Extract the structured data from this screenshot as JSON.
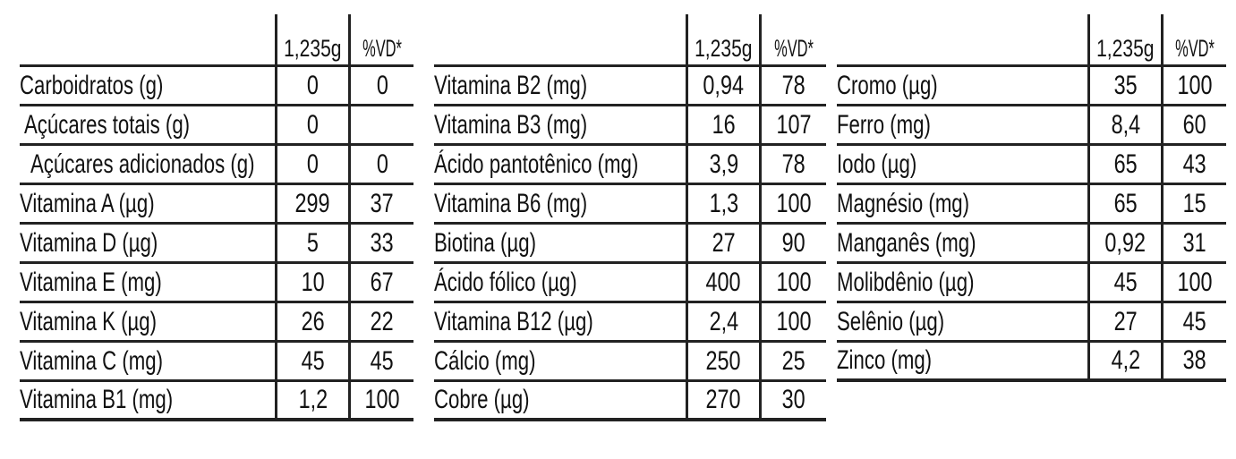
{
  "header": {
    "amount_label": "1,235g",
    "dv_label": "%VD*"
  },
  "tables": [
    {
      "rows": [
        {
          "name": "Carboidratos (g)",
          "amount": "0",
          "dv": "0",
          "indent": 0
        },
        {
          "name": "Açúcares totais (g)",
          "amount": "0",
          "dv": "",
          "indent": 1
        },
        {
          "name": "Açúcares adicionados (g)",
          "amount": "0",
          "dv": "0",
          "indent": 2
        },
        {
          "name": "Vitamina A (µg)",
          "amount": "299",
          "dv": "37",
          "indent": 0
        },
        {
          "name": "Vitamina D (µg)",
          "amount": "5",
          "dv": "33",
          "indent": 0
        },
        {
          "name": "Vitamina E (mg)",
          "amount": "10",
          "dv": "67",
          "indent": 0
        },
        {
          "name": "Vitamina K (µg)",
          "amount": "26",
          "dv": "22",
          "indent": 0
        },
        {
          "name": "Vitamina C (mg)",
          "amount": "45",
          "dv": "45",
          "indent": 0
        },
        {
          "name": "Vitamina B1 (mg)",
          "amount": "1,2",
          "dv": "100",
          "indent": 0
        }
      ]
    },
    {
      "rows": [
        {
          "name": "Vitamina B2 (mg)",
          "amount": "0,94",
          "dv": "78",
          "indent": 0
        },
        {
          "name": "Vitamina B3 (mg)",
          "amount": "16",
          "dv": "107",
          "indent": 0
        },
        {
          "name": "Ácido pantotênico (mg)",
          "amount": "3,9",
          "dv": "78",
          "indent": 0
        },
        {
          "name": "Vitamina B6 (mg)",
          "amount": "1,3",
          "dv": "100",
          "indent": 0
        },
        {
          "name": "Biotina (µg)",
          "amount": "27",
          "dv": "90",
          "indent": 0
        },
        {
          "name": "Ácido fólico (µg)",
          "amount": "400",
          "dv": "100",
          "indent": 0
        },
        {
          "name": "Vitamina B12 (µg)",
          "amount": "2,4",
          "dv": "100",
          "indent": 0
        },
        {
          "name": "Cálcio (mg)",
          "amount": "250",
          "dv": "25",
          "indent": 0
        },
        {
          "name": "Cobre (µg)",
          "amount": "270",
          "dv": "30",
          "indent": 0
        }
      ]
    },
    {
      "rows": [
        {
          "name": "Cromo (µg)",
          "amount": "35",
          "dv": "100",
          "indent": 0
        },
        {
          "name": "Ferro (mg)",
          "amount": "8,4",
          "dv": "60",
          "indent": 0
        },
        {
          "name": "Iodo (µg)",
          "amount": "65",
          "dv": "43",
          "indent": 0
        },
        {
          "name": "Magnésio (mg)",
          "amount": "65",
          "dv": "15",
          "indent": 0
        },
        {
          "name": "Manganês (mg)",
          "amount": "0,92",
          "dv": "31",
          "indent": 0
        },
        {
          "name": "Molibdênio (µg)",
          "amount": "45",
          "dv": "100",
          "indent": 0
        },
        {
          "name": "Selênio (µg)",
          "amount": "27",
          "dv": "45",
          "indent": 0
        },
        {
          "name": "Zinco (mg)",
          "amount": "4,2",
          "dv": "38",
          "indent": 0
        }
      ]
    }
  ]
}
